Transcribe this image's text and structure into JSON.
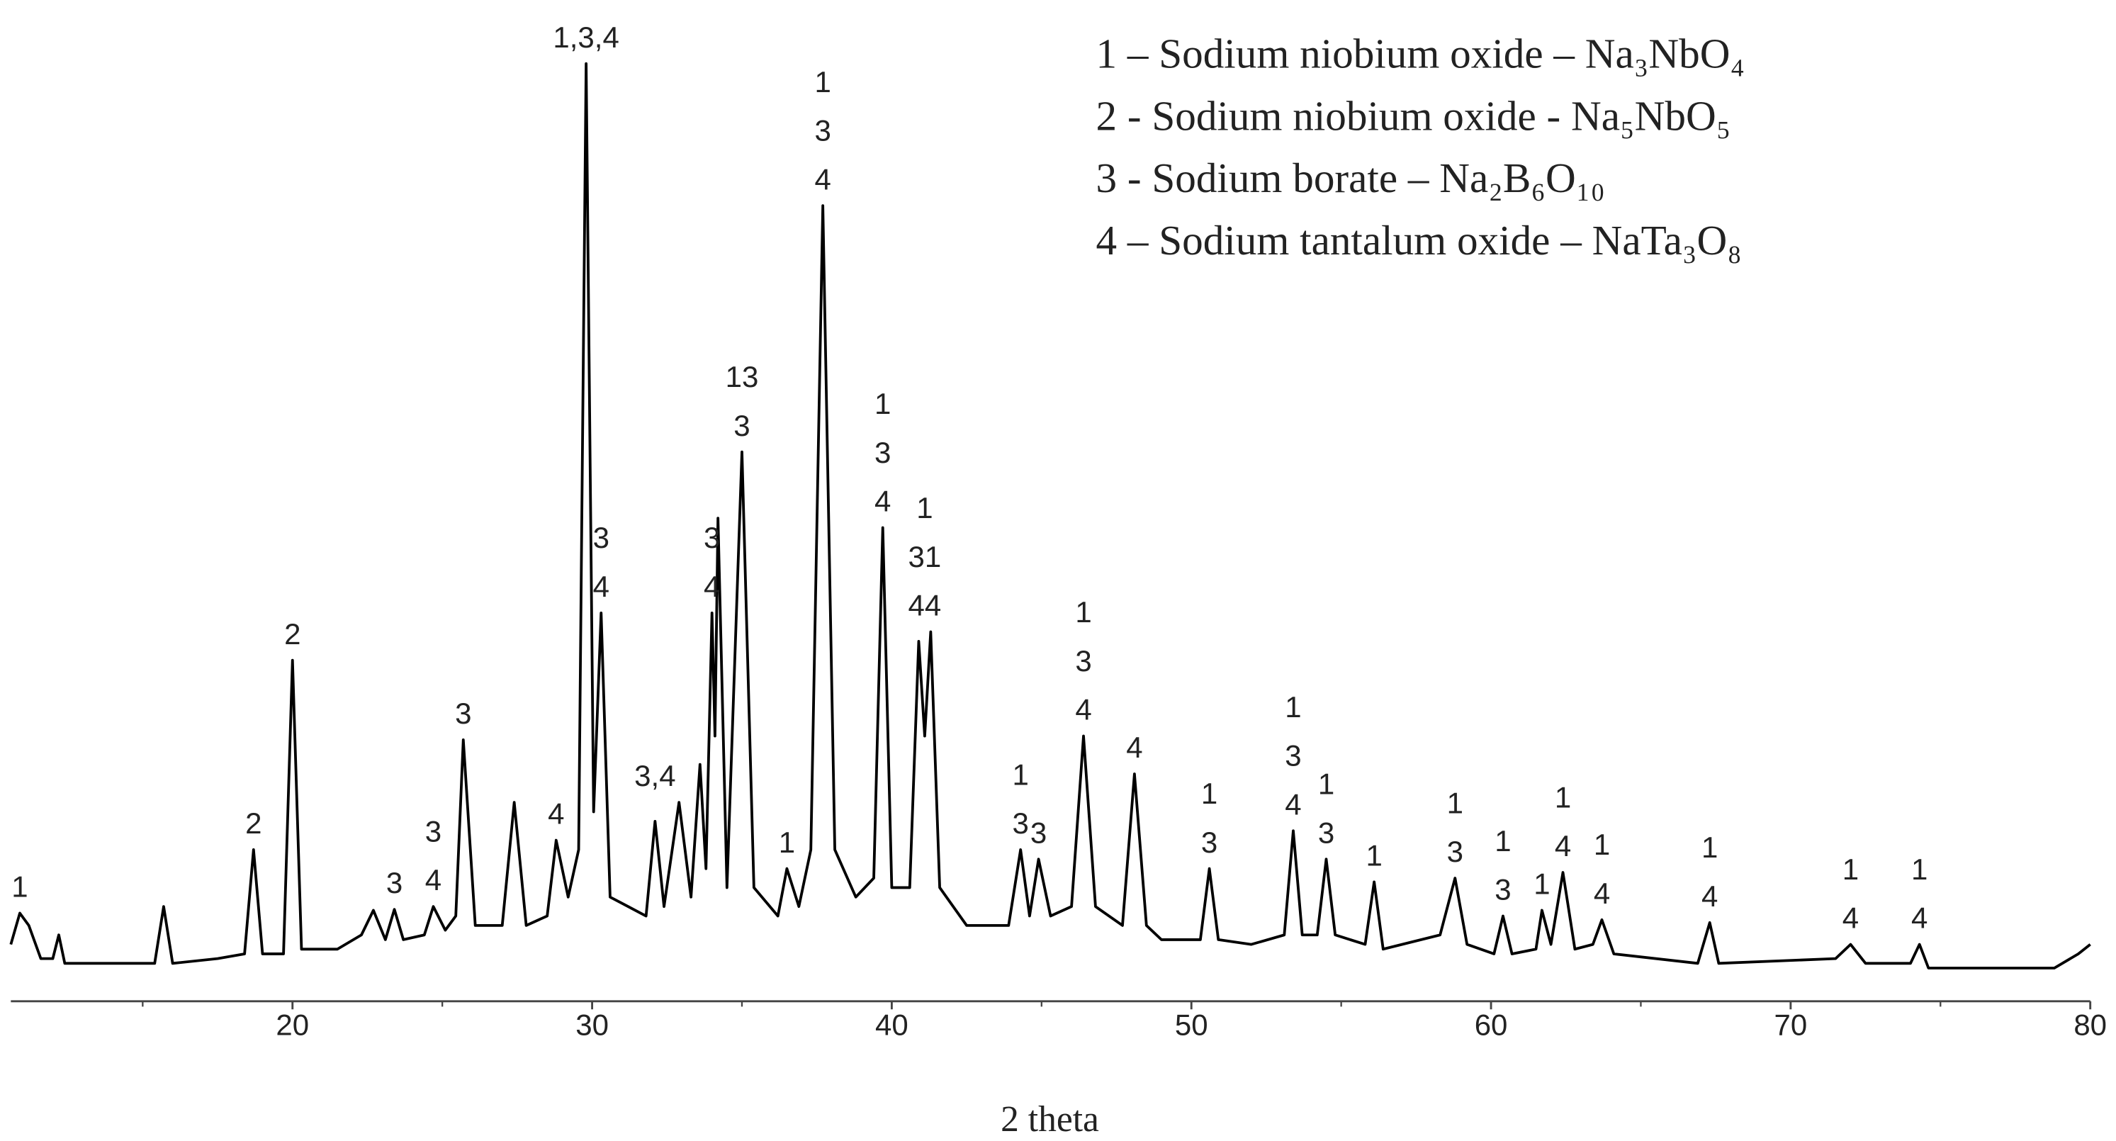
{
  "chart_data": {
    "type": "line",
    "x_label": "2 theta",
    "color": "#000000",
    "x": [
      10.6,
      10.9,
      11.2,
      11.6,
      12.0,
      12.2,
      12.4,
      13.5,
      15.4,
      15.7,
      16.0,
      17.5,
      18.4,
      18.7,
      19.0,
      19.7,
      20.0,
      20.3,
      21.5,
      22.3,
      22.7,
      23.1,
      23.4,
      23.7,
      24.4,
      24.7,
      25.1,
      25.45,
      25.7,
      26.1,
      27.0,
      27.4,
      27.8,
      28.5,
      28.8,
      29.2,
      29.55,
      29.8,
      30.05,
      30.3,
      30.6,
      31.8,
      32.1,
      32.4,
      32.9,
      33.3,
      33.6,
      33.8,
      34.0,
      34.1,
      34.2,
      34.5,
      35.0,
      35.4,
      36.2,
      36.5,
      36.9,
      37.3,
      37.7,
      38.1,
      38.8,
      39.4,
      39.7,
      40.0,
      40.6,
      40.9,
      41.1,
      41.3,
      41.6,
      42.5,
      43.9,
      44.3,
      44.6,
      44.9,
      45.3,
      46.0,
      46.4,
      46.8,
      47.7,
      48.1,
      48.5,
      49.0,
      50.3,
      50.6,
      50.9,
      52.0,
      53.1,
      53.4,
      53.7,
      54.2,
      54.5,
      54.8,
      55.8,
      56.1,
      56.4,
      58.3,
      58.8,
      59.2,
      60.1,
      60.4,
      60.7,
      61.5,
      61.7,
      62.0,
      62.4,
      62.8,
      63.4,
      63.7,
      64.1,
      66.9,
      67.3,
      67.6,
      71.5,
      72.0,
      72.5,
      73.0,
      74.0,
      74.3,
      74.6,
      78.8,
      79.6,
      80.0
    ],
    "values": [
      6,
      9.3,
      8,
      4.5,
      4.5,
      7,
      4,
      4,
      4,
      10,
      4,
      4.5,
      5,
      16,
      5,
      5,
      36,
      5.5,
      5.5,
      7,
      9.6,
      6.5,
      9.7,
      6.5,
      7,
      10,
      7.5,
      9,
      27.6,
      8,
      8,
      21,
      8,
      9,
      17,
      11,
      16,
      99,
      20,
      41,
      11,
      9,
      19,
      10,
      21,
      11,
      25,
      14,
      41,
      28,
      51,
      12,
      58,
      12,
      9,
      14,
      10,
      16,
      84,
      16,
      11,
      13,
      50,
      12,
      12,
      38,
      28,
      39,
      12,
      8,
      8,
      16,
      9,
      15,
      9,
      10,
      28,
      10,
      8,
      24,
      8,
      6.5,
      6.5,
      14,
      6.5,
      6,
      7,
      18,
      7,
      7,
      15,
      7,
      6,
      12.6,
      5.5,
      7,
      13,
      6,
      5,
      9,
      5,
      5.5,
      9.6,
      6,
      13.6,
      5.5,
      6,
      8.6,
      5,
      4,
      8.3,
      4,
      4.5,
      6,
      4,
      4,
      4,
      6,
      3.5,
      3.5,
      5,
      6
    ],
    "xlim": [
      10.6,
      80
    ],
    "ylim": [
      0,
      100
    ],
    "xticks": [
      20,
      30,
      40,
      50,
      60,
      70,
      80
    ],
    "minor_xticks": [
      15,
      25,
      35,
      45,
      55,
      65,
      75
    ],
    "legend": [
      "1 – Sodium niobium oxide – Na₃NbO₄",
      "2 - Sodium niobium oxide  - Na₅NbO₅",
      "3 - Sodium borate – Na₂B₆O₁₀",
      "4 – Sodium tantalum oxide – NaTa₃O₈"
    ],
    "annotations": [
      {
        "lines": [
          "1"
        ],
        "x": 10.9,
        "y": 9.3
      },
      {
        "lines": [
          "2"
        ],
        "x": 18.7,
        "y": 16
      },
      {
        "lines": [
          "2"
        ],
        "x": 20.0,
        "y": 36
      },
      {
        "lines": [
          "3"
        ],
        "x": 23.4,
        "y": 9.7
      },
      {
        "lines": [
          "3",
          "4"
        ],
        "x": 24.7,
        "y": 10
      },
      {
        "lines": [
          "3"
        ],
        "x": 25.7,
        "y": 27.6
      },
      {
        "lines": [
          "4"
        ],
        "x": 28.8,
        "y": 17
      },
      {
        "lines": [
          "1,3,4"
        ],
        "x": 29.8,
        "y": 99
      },
      {
        "lines": [
          "3",
          "4"
        ],
        "x": 30.3,
        "y": 41
      },
      {
        "lines": [
          "3,4"
        ],
        "x": 32.1,
        "y": 21
      },
      {
        "lines": [
          "3",
          "4"
        ],
        "x": 34.0,
        "y": 41
      },
      {
        "lines": [
          "13",
          "3"
        ],
        "x": 35.0,
        "y": 58
      },
      {
        "lines": [
          "1"
        ],
        "x": 36.5,
        "y": 14
      },
      {
        "lines": [
          "1",
          "3",
          "4"
        ],
        "x": 37.7,
        "y": 84
      },
      {
        "lines": [
          "1",
          "3",
          "4"
        ],
        "x": 39.7,
        "y": 50
      },
      {
        "lines": [
          "1",
          "31",
          "44"
        ],
        "x": 41.1,
        "y": 39
      },
      {
        "lines": [
          "1",
          "3"
        ],
        "x": 44.3,
        "y": 16
      },
      {
        "lines": [
          "3"
        ],
        "x": 44.9,
        "y": 15
      },
      {
        "lines": [
          "1",
          "3",
          "4"
        ],
        "x": 46.4,
        "y": 28
      },
      {
        "lines": [
          "4"
        ],
        "x": 48.1,
        "y": 24
      },
      {
        "lines": [
          "1",
          "3"
        ],
        "x": 50.6,
        "y": 14
      },
      {
        "lines": [
          "1",
          "3",
          "4"
        ],
        "x": 53.4,
        "y": 18
      },
      {
        "lines": [
          "1",
          "3"
        ],
        "x": 54.5,
        "y": 15
      },
      {
        "lines": [
          "1"
        ],
        "x": 56.1,
        "y": 12.6
      },
      {
        "lines": [
          "1",
          "3"
        ],
        "x": 58.8,
        "y": 13
      },
      {
        "lines": [
          "1",
          "3"
        ],
        "x": 60.4,
        "y": 9
      },
      {
        "lines": [
          "1"
        ],
        "x": 61.7,
        "y": 9.6
      },
      {
        "lines": [
          "1",
          "4"
        ],
        "x": 62.4,
        "y": 13.6
      },
      {
        "lines": [
          "1",
          "4"
        ],
        "x": 63.7,
        "y": 8.6
      },
      {
        "lines": [
          "1",
          "4"
        ],
        "x": 67.3,
        "y": 8.3
      },
      {
        "lines": [
          "1",
          "4"
        ],
        "x": 72.0,
        "y": 6
      },
      {
        "lines": [
          "1",
          "4"
        ],
        "x": 74.3,
        "y": 6
      }
    ]
  }
}
